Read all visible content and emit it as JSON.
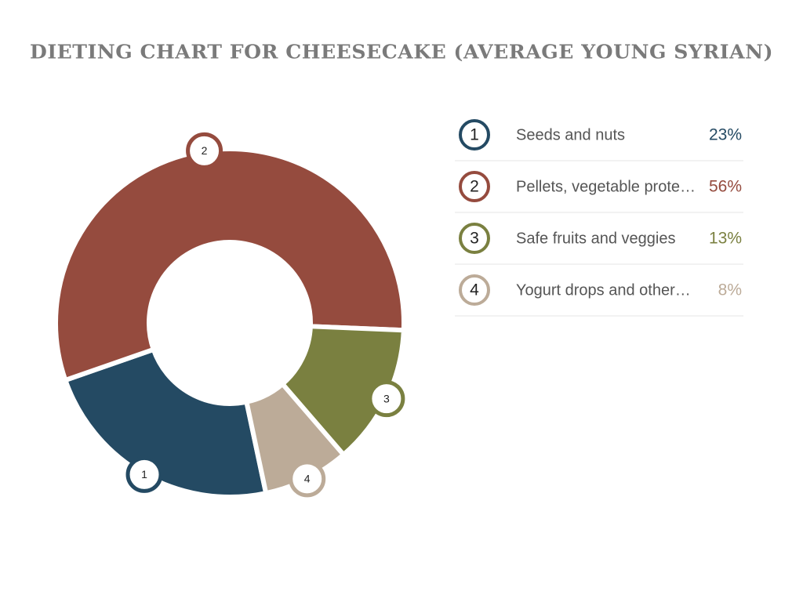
{
  "chart_data": {
    "type": "donut",
    "title": "DIETING CHART FOR CHEESECAKE (AVERAGE YOUNG SYRIAN)",
    "categories": [
      "Seeds and nuts",
      "Pellets, vegetable prote…",
      "Safe fruits and veggies",
      "Yogurt drops and other…"
    ],
    "markers": [
      "1",
      "2",
      "3",
      "4"
    ],
    "values": [
      23,
      56,
      13,
      8
    ],
    "value_labels": [
      "23%",
      "56%",
      "13%",
      "8%"
    ],
    "colors": [
      "#244a63",
      "#954b3e",
      "#7a8040",
      "#bcab98"
    ],
    "legend": "right"
  }
}
